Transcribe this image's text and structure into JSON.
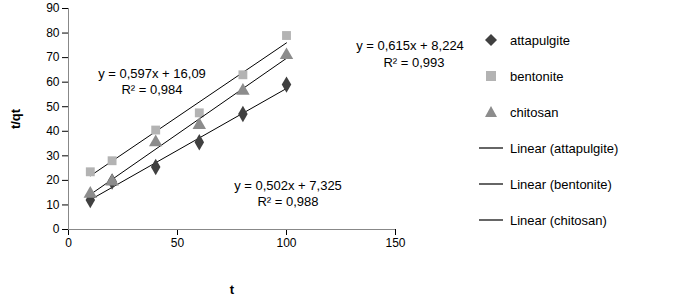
{
  "chart_data": {
    "type": "scatter",
    "x_label": "t",
    "y_label": "t/qt",
    "xlim": [
      0,
      150
    ],
    "xticks": [
      0,
      50,
      100,
      150
    ],
    "ylim": [
      0,
      90
    ],
    "yticks": [
      0,
      10,
      20,
      30,
      40,
      50,
      60,
      70,
      80,
      90
    ],
    "grid": false,
    "legend": "right",
    "series": [
      {
        "name": "attapulgite",
        "color": "#404040",
        "marker": "diamond",
        "x": [
          10,
          20,
          40,
          60,
          80,
          100
        ],
        "values": [
          12,
          19.5,
          25.5,
          35.5,
          47,
          59
        ],
        "trendline": {
          "name": "Linear (attapulgite)",
          "color": "#000000",
          "line_style": "solid",
          "equation": "y = 0,502x + 7,325",
          "r2": "R² = 0,988"
        }
      },
      {
        "name": "bentonite",
        "color": "#b3b3b3",
        "marker": "square",
        "x": [
          10,
          20,
          40,
          60,
          80,
          100
        ],
        "values": [
          23.5,
          28,
          40.5,
          47.5,
          63,
          79
        ],
        "trendline": {
          "name": "Linear (bentonite)",
          "color": "#000000",
          "line_style": "solid",
          "equation": "y = 0,597x + 16,09",
          "r2": "R² = 0,984"
        }
      },
      {
        "name": "chitosan",
        "color": "#8c8c8c",
        "marker": "triangle",
        "x": [
          10,
          20,
          40,
          60,
          80,
          100
        ],
        "values": [
          14.5,
          19.5,
          35.5,
          42.5,
          56.5,
          71
        ],
        "trendline": {
          "name": "Linear (chitosan)",
          "color": "#000000",
          "line_style": "solid",
          "equation": "y = 0,615x + 8,224",
          "r2": "R² = 0,993"
        }
      }
    ]
  }
}
